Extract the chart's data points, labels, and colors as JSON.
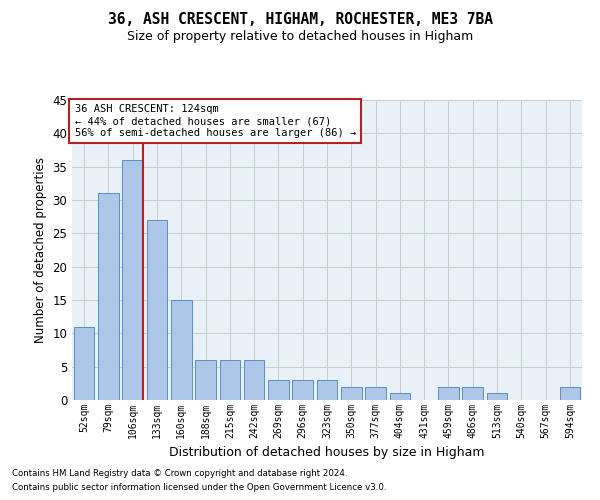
{
  "title": "36, ASH CRESCENT, HIGHAM, ROCHESTER, ME3 7BA",
  "subtitle": "Size of property relative to detached houses in Higham",
  "xlabel": "Distribution of detached houses by size in Higham",
  "ylabel": "Number of detached properties",
  "categories": [
    "52sqm",
    "79sqm",
    "106sqm",
    "133sqm",
    "160sqm",
    "188sqm",
    "215sqm",
    "242sqm",
    "269sqm",
    "296sqm",
    "323sqm",
    "350sqm",
    "377sqm",
    "404sqm",
    "431sqm",
    "459sqm",
    "486sqm",
    "513sqm",
    "540sqm",
    "567sqm",
    "594sqm"
  ],
  "values": [
    11,
    31,
    36,
    27,
    15,
    6,
    6,
    6,
    3,
    3,
    3,
    2,
    2,
    1,
    0,
    2,
    2,
    1,
    0,
    0,
    2
  ],
  "bar_color": "#aec6e8",
  "bar_edge_color": "#5a8fc2",
  "vline_index": 2,
  "vline_color": "#b22222",
  "annotation_line1": "36 ASH CRESCENT: 124sqm",
  "annotation_line2": "← 44% of detached houses are smaller (67)",
  "annotation_line3": "56% of semi-detached houses are larger (86) →",
  "annotation_box_color": "#ffffff",
  "annotation_box_edge": "#b22222",
  "ylim": [
    0,
    45
  ],
  "yticks": [
    0,
    5,
    10,
    15,
    20,
    25,
    30,
    35,
    40,
    45
  ],
  "grid_color": "#cccccc",
  "bg_color": "#e8f0f8",
  "footnote1": "Contains HM Land Registry data © Crown copyright and database right 2024.",
  "footnote2": "Contains public sector information licensed under the Open Government Licence v3.0."
}
